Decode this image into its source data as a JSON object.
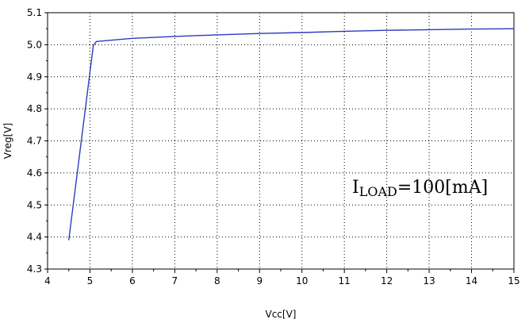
{
  "chart_data": {
    "type": "line",
    "xlabel": "Vcc[V]",
    "ylabel": "Vreg[V]",
    "xlim": [
      4,
      15
    ],
    "ylim": [
      4.3,
      5.1
    ],
    "x_ticks": [
      "4",
      "5",
      "6",
      "7",
      "8",
      "9",
      "10",
      "11",
      "12",
      "13",
      "14",
      "15"
    ],
    "y_ticks": [
      "4.3",
      "4.4",
      "4.5",
      "4.6",
      "4.7",
      "4.8",
      "4.9",
      "5.0",
      "5.1"
    ],
    "grid": true,
    "annotation": {
      "main": "I",
      "sub": "LOAD",
      "rest": "=100[mA]"
    },
    "series": [
      {
        "color": "#2b3bbf",
        "x": [
          4.5,
          5.08,
          5.15,
          6,
          7,
          8,
          9,
          10,
          11,
          12,
          13,
          14,
          15
        ],
        "y": [
          4.39,
          4.998,
          5.01,
          5.02,
          5.026,
          5.031,
          5.035,
          5.038,
          5.042,
          5.045,
          5.047,
          5.049,
          5.05
        ]
      }
    ]
  }
}
